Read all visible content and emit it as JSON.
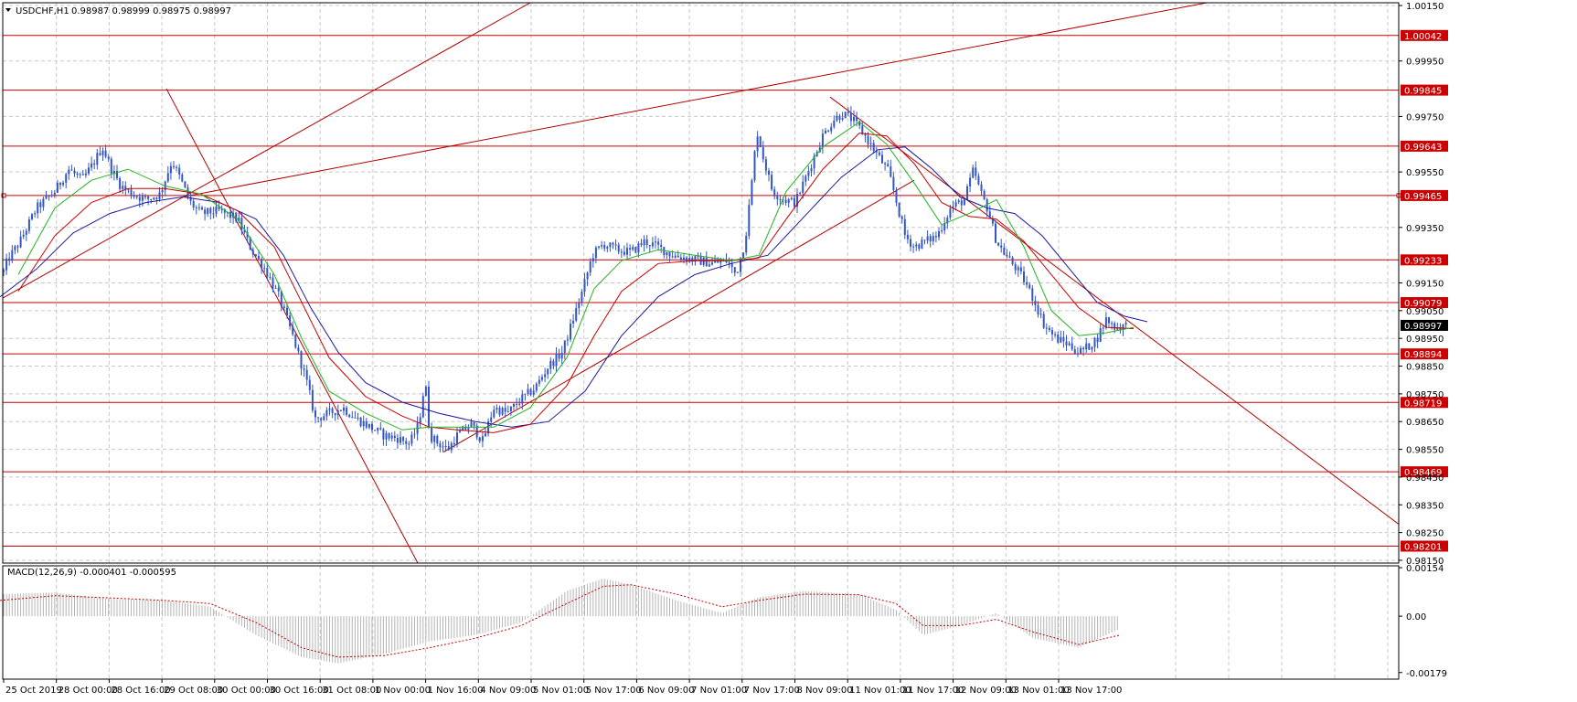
{
  "colors": {
    "grid": "#c8c8c8",
    "frame": "#000000",
    "candle": "#3355c8",
    "level": "#cc0000",
    "trend": "#b40000",
    "ma_fast": "#22b422",
    "ma_mid": "#c80000",
    "ma_slow": "#1a1aa0",
    "macd_hist": "#b4b4b4",
    "macd_signal": "#c80000",
    "price_tag_bg": "#000000",
    "price_tag_fg": "#ffffff"
  },
  "chart_data": [
    {
      "type": "candlestick",
      "symbol_label": "USDCHF,H1",
      "ohlc_label": "0.98987 0.98999 0.98975 0.98997",
      "collapse_icon": "triangle-down-icon",
      "ylim": [
        0.9814,
        1.0016
      ],
      "y_ticks": [
        1.0015,
        0.9995,
        0.9975,
        0.9955,
        0.9935,
        0.9915,
        0.9905,
        0.9895,
        0.9885,
        0.9875,
        0.9865,
        0.9855,
        0.9845,
        0.9835,
        0.9825,
        0.9815
      ],
      "y_tick_labels": [
        "1.00150",
        "0.99950",
        "0.99750",
        "0.99550",
        "0.99350",
        "0.99150",
        "0.99050",
        "0.98950",
        "0.98850",
        "0.98750",
        "0.98650",
        "0.98550",
        "0.98450",
        "0.98350",
        "0.98250",
        "0.98150"
      ],
      "x_tick_labels": [
        "25 Oct 2019",
        "28 Oct 00:00",
        "28 Oct 16:00",
        "29 Oct 08:00",
        "30 Oct 00:00",
        "30 Oct 16:00",
        "31 Oct 08:00",
        "1 Nov 00:00",
        "1 Nov 16:00",
        "4 Nov 09:00",
        "5 Nov 01:00",
        "5 Nov 17:00",
        "6 Nov 09:00",
        "7 Nov 01:00",
        "7 Nov 17:00",
        "8 Nov 09:00",
        "11 Nov 01:00",
        "11 Nov 17:00",
        "12 Nov 09:00",
        "13 Nov 01:00",
        "13 Nov 17:00"
      ],
      "current_price": "0.98997",
      "levels": [
        {
          "value": 1.00042,
          "label": "1.00042"
        },
        {
          "value": 0.99845,
          "label": "0.99845"
        },
        {
          "value": 0.99643,
          "label": "0.99643"
        },
        {
          "value": 0.99465,
          "label": "0.99465"
        },
        {
          "value": 0.99233,
          "label": "0.99233"
        },
        {
          "value": 0.99079,
          "label": "0.99079"
        },
        {
          "value": 0.98894,
          "label": "0.98894"
        },
        {
          "value": 0.98719,
          "label": "0.98719"
        },
        {
          "value": 0.98469,
          "label": "0.98469"
        },
        {
          "value": 0.98201,
          "label": "0.98201"
        }
      ],
      "price_path": [
        [
          0,
          0.9915
        ],
        [
          8,
          0.9923
        ],
        [
          22,
          0.993
        ],
        [
          40,
          0.9942
        ],
        [
          60,
          0.9948
        ],
        [
          75,
          0.9956
        ],
        [
          90,
          0.9952
        ],
        [
          102,
          0.9958
        ],
        [
          112,
          0.9964
        ],
        [
          122,
          0.9956
        ],
        [
          132,
          0.995
        ],
        [
          145,
          0.9947
        ],
        [
          160,
          0.9945
        ],
        [
          175,
          0.9947
        ],
        [
          188,
          0.9959
        ],
        [
          198,
          0.9952
        ],
        [
          208,
          0.9944
        ],
        [
          220,
          0.994
        ],
        [
          240,
          0.9941
        ],
        [
          260,
          0.9938
        ],
        [
          275,
          0.9927
        ],
        [
          290,
          0.992
        ],
        [
          305,
          0.991
        ],
        [
          320,
          0.9896
        ],
        [
          335,
          0.988
        ],
        [
          345,
          0.9866
        ],
        [
          360,
          0.9868
        ],
        [
          375,
          0.987
        ],
        [
          390,
          0.9866
        ],
        [
          405,
          0.9863
        ],
        [
          420,
          0.986
        ],
        [
          435,
          0.9859
        ],
        [
          448,
          0.9857
        ],
        [
          458,
          0.9864
        ],
        [
          465,
          0.988
        ],
        [
          470,
          0.986
        ],
        [
          480,
          0.9857
        ],
        [
          490,
          0.9855
        ],
        [
          500,
          0.986
        ],
        [
          515,
          0.9864
        ],
        [
          528,
          0.9858
        ],
        [
          540,
          0.987
        ],
        [
          555,
          0.9868
        ],
        [
          570,
          0.9873
        ],
        [
          585,
          0.9877
        ],
        [
          600,
          0.9885
        ],
        [
          615,
          0.989
        ],
        [
          625,
          0.99
        ],
        [
          637,
          0.9912
        ],
        [
          648,
          0.9925
        ],
        [
          660,
          0.9929
        ],
        [
          675,
          0.9927
        ],
        [
          690,
          0.9926
        ],
        [
          705,
          0.993
        ],
        [
          720,
          0.9928
        ],
        [
          735,
          0.9925
        ],
        [
          750,
          0.9924
        ],
        [
          765,
          0.9923
        ],
        [
          780,
          0.9922
        ],
        [
          795,
          0.9923
        ],
        [
          805,
          0.9918
        ],
        [
          815,
          0.993
        ],
        [
          822,
          0.995
        ],
        [
          828,
          0.997
        ],
        [
          835,
          0.996
        ],
        [
          845,
          0.9948
        ],
        [
          858,
          0.9945
        ],
        [
          870,
          0.9944
        ],
        [
          880,
          0.9952
        ],
        [
          890,
          0.996
        ],
        [
          900,
          0.9968
        ],
        [
          912,
          0.9974
        ],
        [
          922,
          0.9976
        ],
        [
          932,
          0.9974
        ],
        [
          942,
          0.997
        ],
        [
          952,
          0.9965
        ],
        [
          962,
          0.996
        ],
        [
          972,
          0.9955
        ],
        [
          980,
          0.9945
        ],
        [
          990,
          0.9932
        ],
        [
          1000,
          0.9928
        ],
        [
          1012,
          0.993
        ],
        [
          1025,
          0.9932
        ],
        [
          1040,
          0.9942
        ],
        [
          1055,
          0.9945
        ],
        [
          1065,
          0.9956
        ],
        [
          1072,
          0.9948
        ],
        [
          1080,
          0.9942
        ],
        [
          1090,
          0.993
        ],
        [
          1100,
          0.9925
        ],
        [
          1112,
          0.992
        ],
        [
          1122,
          0.9915
        ],
        [
          1132,
          0.9908
        ],
        [
          1142,
          0.99
        ],
        [
          1155,
          0.9895
        ],
        [
          1168,
          0.9893
        ],
        [
          1180,
          0.989
        ],
        [
          1190,
          0.9892
        ],
        [
          1200,
          0.9895
        ],
        [
          1210,
          0.9902
        ],
        [
          1220,
          0.9899
        ],
        [
          1232,
          0.98997
        ]
      ],
      "ma_fast_path": [
        [
          20,
          0.9918
        ],
        [
          60,
          0.9942
        ],
        [
          100,
          0.9952
        ],
        [
          140,
          0.9956
        ],
        [
          180,
          0.995
        ],
        [
          220,
          0.9947
        ],
        [
          260,
          0.9938
        ],
        [
          300,
          0.9918
        ],
        [
          330,
          0.9895
        ],
        [
          360,
          0.9876
        ],
        [
          400,
          0.9868
        ],
        [
          440,
          0.9862
        ],
        [
          470,
          0.9863
        ],
        [
          500,
          0.9863
        ],
        [
          540,
          0.9863
        ],
        [
          580,
          0.987
        ],
        [
          620,
          0.9888
        ],
        [
          650,
          0.9913
        ],
        [
          680,
          0.9923
        ],
        [
          720,
          0.9927
        ],
        [
          760,
          0.9925
        ],
        [
          800,
          0.9923
        ],
        [
          830,
          0.9925
        ],
        [
          860,
          0.9948
        ],
        [
          900,
          0.9964
        ],
        [
          940,
          0.9973
        ],
        [
          970,
          0.9965
        ],
        [
          1000,
          0.9951
        ],
        [
          1030,
          0.9936
        ],
        [
          1060,
          0.994
        ],
        [
          1090,
          0.9945
        ],
        [
          1120,
          0.9928
        ],
        [
          1150,
          0.9905
        ],
        [
          1180,
          0.9896
        ],
        [
          1210,
          0.9897
        ],
        [
          1240,
          0.9899
        ]
      ],
      "ma_mid_path": [
        [
          20,
          0.9912
        ],
        [
          60,
          0.9932
        ],
        [
          100,
          0.9944
        ],
        [
          140,
          0.9949
        ],
        [
          180,
          0.9949
        ],
        [
          220,
          0.9947
        ],
        [
          260,
          0.9941
        ],
        [
          300,
          0.9928
        ],
        [
          330,
          0.9908
        ],
        [
          360,
          0.9888
        ],
        [
          400,
          0.9874
        ],
        [
          440,
          0.9867
        ],
        [
          470,
          0.9863
        ],
        [
          500,
          0.9862
        ],
        [
          540,
          0.9861
        ],
        [
          580,
          0.9864
        ],
        [
          620,
          0.9878
        ],
        [
          650,
          0.9896
        ],
        [
          680,
          0.9912
        ],
        [
          720,
          0.9922
        ],
        [
          760,
          0.9923
        ],
        [
          800,
          0.9923
        ],
        [
          830,
          0.9924
        ],
        [
          860,
          0.9938
        ],
        [
          900,
          0.9956
        ],
        [
          940,
          0.9969
        ],
        [
          970,
          0.9968
        ],
        [
          1000,
          0.9958
        ],
        [
          1030,
          0.9944
        ],
        [
          1060,
          0.9939
        ],
        [
          1090,
          0.9938
        ],
        [
          1120,
          0.993
        ],
        [
          1150,
          0.9918
        ],
        [
          1180,
          0.9906
        ],
        [
          1210,
          0.9899
        ],
        [
          1240,
          0.98985
        ]
      ],
      "ma_slow_path": [
        [
          0,
          0.991
        ],
        [
          40,
          0.992
        ],
        [
          80,
          0.9933
        ],
        [
          120,
          0.994
        ],
        [
          160,
          0.9944
        ],
        [
          200,
          0.9946
        ],
        [
          240,
          0.9944
        ],
        [
          280,
          0.9938
        ],
        [
          310,
          0.9925
        ],
        [
          340,
          0.9906
        ],
        [
          370,
          0.989
        ],
        [
          400,
          0.9879
        ],
        [
          440,
          0.9872
        ],
        [
          480,
          0.9868
        ],
        [
          520,
          0.9865
        ],
        [
          560,
          0.9863
        ],
        [
          600,
          0.9865
        ],
        [
          640,
          0.9876
        ],
        [
          680,
          0.9896
        ],
        [
          720,
          0.991
        ],
        [
          760,
          0.9918
        ],
        [
          800,
          0.9922
        ],
        [
          840,
          0.9925
        ],
        [
          880,
          0.9939
        ],
        [
          920,
          0.9953
        ],
        [
          960,
          0.9963
        ],
        [
          990,
          0.9964
        ],
        [
          1020,
          0.9956
        ],
        [
          1050,
          0.9946
        ],
        [
          1080,
          0.9942
        ],
        [
          1110,
          0.994
        ],
        [
          1140,
          0.9932
        ],
        [
          1170,
          0.992
        ],
        [
          1200,
          0.9908
        ],
        [
          1230,
          0.9903
        ],
        [
          1255,
          0.9901
        ]
      ],
      "trendlines": [
        {
          "from": [
            0,
            0.9909
          ],
          "to": [
            580,
            1.0016
          ]
        },
        {
          "from": [
            200,
            0.9946
          ],
          "to": [
            1320,
            1.0016
          ]
        },
        {
          "from": [
            182,
            0.9985
          ],
          "to": [
            457,
            0.9814
          ]
        },
        {
          "from": [
            485,
            0.9854
          ],
          "to": [
            1000,
            0.9952
          ]
        },
        {
          "from": [
            908,
            0.9982
          ],
          "to": [
            1530,
            0.9828
          ]
        }
      ]
    },
    {
      "type": "macd",
      "label": "MACD(12,26,9) -0.000401 -0.000595",
      "ylim": [
        -0.002,
        0.0016
      ],
      "y_tick_labels": [
        "0.00154",
        "0.00",
        "-0.00179"
      ],
      "y_ticks": [
        0.00154,
        0.0,
        -0.00179
      ],
      "histogram_path": [
        [
          0,
          0.0007
        ],
        [
          60,
          0.00075
        ],
        [
          120,
          0.00055
        ],
        [
          180,
          0.0005
        ],
        [
          230,
          0.0003
        ],
        [
          280,
          -0.0006
        ],
        [
          330,
          -0.0013
        ],
        [
          370,
          -0.0015
        ],
        [
          420,
          -0.0012
        ],
        [
          470,
          -0.0008
        ],
        [
          520,
          -0.0006
        ],
        [
          570,
          -0.0002
        ],
        [
          620,
          0.0008
        ],
        [
          660,
          0.0012
        ],
        [
          690,
          0.001
        ],
        [
          740,
          0.0005
        ],
        [
          790,
          0.0001
        ],
        [
          830,
          0.0006
        ],
        [
          880,
          0.0008
        ],
        [
          940,
          0.0007
        ],
        [
          980,
          0.0002
        ],
        [
          1010,
          -0.0006
        ],
        [
          1050,
          -0.0003
        ],
        [
          1090,
          0.0001
        ],
        [
          1130,
          -0.0007
        ],
        [
          1180,
          -0.001
        ],
        [
          1225,
          -0.0004
        ]
      ],
      "signal_path": [
        [
          0,
          0.0005
        ],
        [
          60,
          0.00065
        ],
        [
          120,
          0.00058
        ],
        [
          180,
          0.0005
        ],
        [
          230,
          0.0004
        ],
        [
          280,
          -0.0002
        ],
        [
          330,
          -0.001
        ],
        [
          370,
          -0.0013
        ],
        [
          420,
          -0.00125
        ],
        [
          470,
          -0.001
        ],
        [
          520,
          -0.0007
        ],
        [
          570,
          -0.0003
        ],
        [
          620,
          0.0004
        ],
        [
          660,
          0.00095
        ],
        [
          690,
          0.001
        ],
        [
          740,
          0.0007
        ],
        [
          790,
          0.0003
        ],
        [
          830,
          0.0005
        ],
        [
          880,
          0.0007
        ],
        [
          940,
          0.00068
        ],
        [
          980,
          0.0004
        ],
        [
          1010,
          -0.0003
        ],
        [
          1050,
          -0.0003
        ],
        [
          1090,
          -0.0001
        ],
        [
          1130,
          -0.0005
        ],
        [
          1180,
          -0.0009
        ],
        [
          1225,
          -0.0006
        ]
      ]
    }
  ]
}
